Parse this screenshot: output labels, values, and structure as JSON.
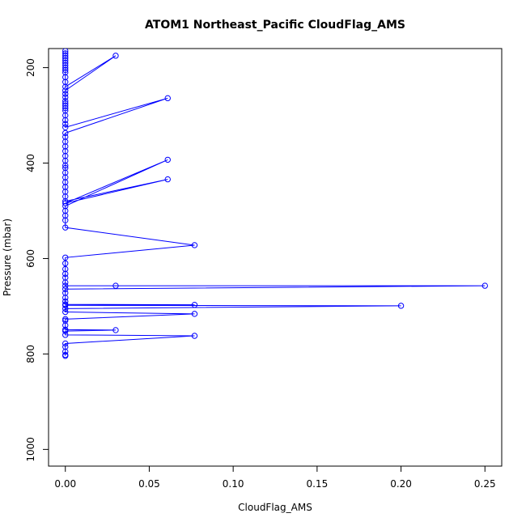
{
  "chart_data": {
    "type": "line",
    "title": "ATOM1 Northeast_Pacific CloudFlag_AMS",
    "xlabel": "CloudFlag_AMS",
    "ylabel": "Pressure (mbar)",
    "xlim": [
      -0.01,
      0.26
    ],
    "ylim": [
      1035,
      160
    ],
    "y_reversed": true,
    "grid": false,
    "x_ticks": [
      0.0,
      0.05,
      0.1,
      0.15,
      0.2,
      0.25
    ],
    "x_tick_labels": [
      "0.00",
      "0.05",
      "0.10",
      "0.15",
      "0.20",
      "0.25"
    ],
    "y_ticks": [
      200,
      400,
      600,
      800,
      1000
    ],
    "y_tick_labels": [
      "200",
      "400",
      "600",
      "800",
      "1000"
    ],
    "series": [
      {
        "color": "#0000ff",
        "marker": "open-circle",
        "line": true,
        "points": [
          [
            0.0,
            804
          ],
          [
            0.0,
            802
          ],
          [
            0.0,
            795
          ],
          [
            0.0,
            785
          ],
          [
            0.0,
            778
          ],
          [
            0.077,
            762
          ],
          [
            0.0,
            760
          ],
          [
            0.0,
            752
          ],
          [
            0.03,
            750
          ],
          [
            0.0,
            749
          ],
          [
            0.0,
            740
          ],
          [
            0.0,
            730
          ],
          [
            0.0,
            727
          ],
          [
            0.077,
            716
          ],
          [
            0.0,
            712
          ],
          [
            0.0,
            705
          ],
          [
            0.2,
            699
          ],
          [
            0.0,
            698
          ],
          [
            0.077,
            697
          ],
          [
            0.0,
            696
          ],
          [
            0.0,
            690
          ],
          [
            0.0,
            682
          ],
          [
            0.0,
            672
          ],
          [
            0.0,
            664
          ],
          [
            0.25,
            657
          ],
          [
            0.03,
            657
          ],
          [
            0.0,
            657
          ],
          [
            0.0,
            650
          ],
          [
            0.0,
            640
          ],
          [
            0.0,
            632
          ],
          [
            0.0,
            622
          ],
          [
            0.0,
            610
          ],
          [
            0.0,
            598
          ],
          [
            0.077,
            572
          ],
          [
            0.0,
            535
          ],
          [
            0.0,
            520
          ],
          [
            0.0,
            510
          ],
          [
            0.0,
            500
          ],
          [
            0.0,
            490
          ],
          [
            0.061,
            393
          ],
          [
            0.0,
            484
          ],
          [
            0.061,
            434
          ],
          [
            0.0,
            480
          ],
          [
            0.0,
            470
          ],
          [
            0.0,
            460
          ],
          [
            0.0,
            450
          ],
          [
            0.0,
            440
          ],
          [
            0.0,
            430
          ],
          [
            0.0,
            420
          ],
          [
            0.0,
            410
          ],
          [
            0.0,
            405
          ],
          [
            0.0,
            395
          ],
          [
            0.0,
            385
          ],
          [
            0.0,
            375
          ],
          [
            0.0,
            365
          ],
          [
            0.0,
            355
          ],
          [
            0.0,
            345
          ],
          [
            0.0,
            337
          ],
          [
            0.061,
            264
          ],
          [
            0.0,
            325
          ],
          [
            0.0,
            318
          ],
          [
            0.0,
            310
          ],
          [
            0.0,
            300
          ],
          [
            0.0,
            290
          ],
          [
            0.0,
            285
          ],
          [
            0.0,
            280
          ],
          [
            0.0,
            275
          ],
          [
            0.0,
            270
          ],
          [
            0.0,
            262
          ],
          [
            0.0,
            255
          ],
          [
            0.0,
            248
          ],
          [
            0.03,
            175
          ],
          [
            0.0,
            240
          ],
          [
            0.0,
            230
          ],
          [
            0.0,
            220
          ],
          [
            0.0,
            210
          ],
          [
            0.0,
            205
          ],
          [
            0.0,
            200
          ],
          [
            0.0,
            195
          ],
          [
            0.0,
            190
          ],
          [
            0.0,
            185
          ],
          [
            0.0,
            180
          ],
          [
            0.0,
            175
          ],
          [
            0.0,
            170
          ],
          [
            0.0,
            165
          ]
        ]
      }
    ]
  }
}
